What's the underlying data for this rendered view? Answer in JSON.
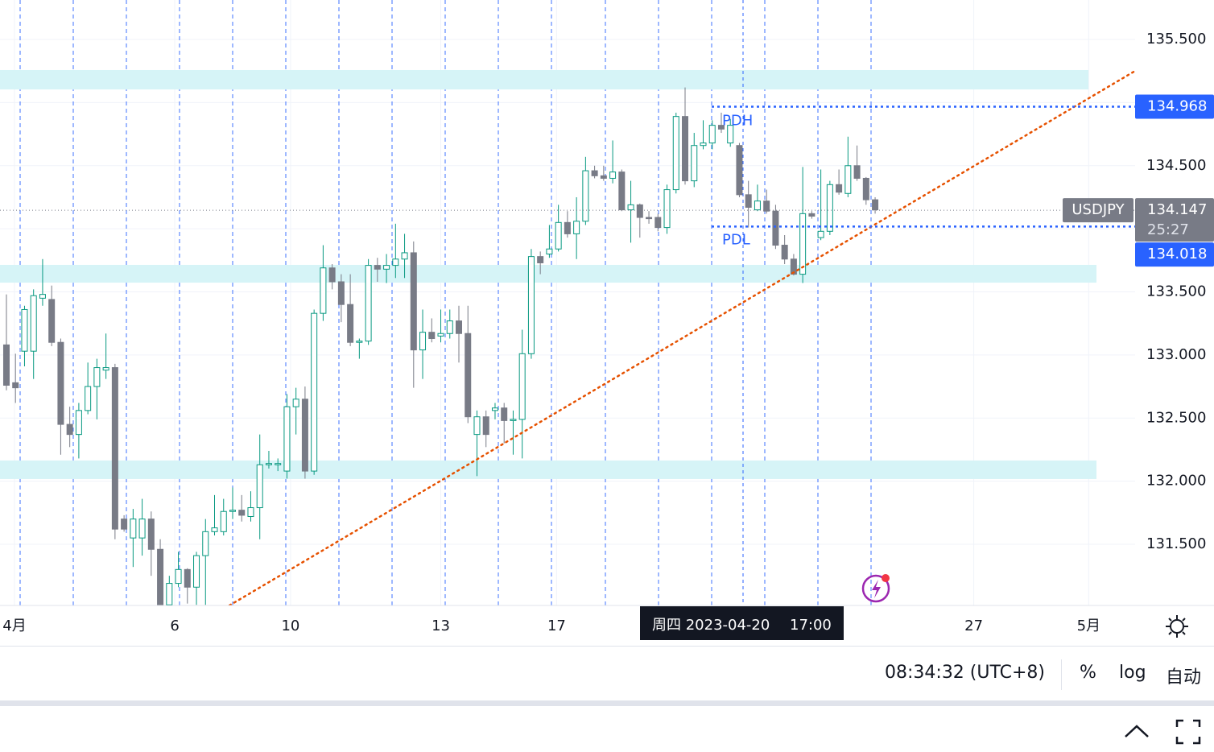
{
  "chart_data": {
    "type": "candlestick",
    "symbol": "USDJPY",
    "up_color": "#089981",
    "down_color": "#787b86",
    "xlim": [
      -0.71,
      124.73
    ],
    "ylim": [
      131.015,
      135.813
    ],
    "yticks": [
      {
        "value": 131.5,
        "label": "131.500"
      },
      {
        "value": 132,
        "label": "132.000"
      },
      {
        "value": 132.5,
        "label": "132.500"
      },
      {
        "value": 133,
        "label": "133.000"
      },
      {
        "value": 133.5,
        "label": "133.500"
      },
      {
        "value": 134,
        "label": "134.000"
      },
      {
        "value": 134.5,
        "label": "134.500"
      },
      {
        "value": 135,
        "label": "135.000"
      },
      {
        "value": 135.5,
        "label": "135.500"
      }
    ],
    "xticks": [
      {
        "value": 0.89,
        "label": "4月"
      },
      {
        "value": 18.6,
        "label": "6"
      },
      {
        "value": 31.4,
        "label": "10"
      },
      {
        "value": 48.0,
        "label": "13"
      },
      {
        "value": 60.8,
        "label": "17"
      },
      {
        "value": 106.9,
        "label": "27"
      },
      {
        "value": 119.6,
        "label": "5月"
      }
    ],
    "grid": true,
    "open": [
      133.08,
      132.78,
      133.03,
      133.03,
      133.45,
      133.44,
      133.1,
      132.45,
      132.37,
      132.56,
      132.75,
      132.88,
      132.9,
      131.7,
      131.55,
      131.55,
      131.7,
      131.46,
      131.02,
      131.19,
      131.3,
      131.16,
      131.41,
      131.6,
      131.6,
      131.76,
      131.77,
      131.72,
      131.79,
      132.13,
      132.13,
      132.08,
      132.59,
      132.65,
      132.08,
      133.33,
      133.69,
      133.58,
      133.4,
      133.1,
      133.11,
      133.71,
      133.68,
      133.71,
      133.76,
      133.81,
      133.04,
      133.18,
      133.15,
      133.17,
      133.27,
      133.17,
      132.37,
      132.51,
      132.56,
      132.58,
      132.48,
      132.49,
      133.01,
      133.78,
      133.8,
      133.84,
      134.05,
      133.96,
      134.06,
      134.46,
      134.42,
      134.4,
      134.45,
      134.15,
      134.19,
      134.09,
      134.09,
      134.01,
      134.31,
      134.89,
      134.38,
      134.66,
      134.68,
      134.82,
      134.68,
      134.66,
      134.27,
      134.15,
      134.22,
      134.14,
      133.87,
      133.76,
      133.64,
      134.12,
      133.93,
      133.98,
      134.35,
      134.28,
      134.5,
      134.4,
      134.23
    ],
    "high": [
      133.48,
      133.01,
      133.39,
      133.52,
      133.76,
      133.55,
      133.13,
      132.59,
      132.62,
      132.94,
      132.97,
      133.17,
      132.93,
      131.73,
      131.78,
      131.86,
      131.76,
      131.54,
      131.25,
      131.44,
      131.31,
      131.44,
      131.7,
      131.89,
      131.86,
      131.95,
      131.89,
      131.92,
      132.37,
      132.24,
      132.18,
      132.69,
      132.74,
      132.75,
      133.36,
      133.87,
      133.72,
      133.64,
      133.64,
      133.13,
      133.76,
      133.77,
      133.8,
      134.04,
      133.96,
      133.9,
      133.36,
      133.29,
      133.36,
      133.36,
      133.39,
      133.39,
      132.56,
      132.56,
      132.62,
      132.62,
      132.56,
      133.2,
      133.84,
      133.82,
      134.03,
      134.19,
      134.14,
      134.25,
      134.57,
      134.5,
      134.5,
      134.7,
      134.47,
      134.38,
      134.2,
      134.14,
      134.12,
      134.35,
      134.92,
      135.12,
      134.76,
      134.86,
      134.86,
      134.92,
      134.87,
      134.68,
      134.38,
      134.35,
      134.31,
      134.19,
      133.95,
      133.8,
      134.49,
      134.14,
      134.47,
      134.38,
      134.47,
      134.73,
      134.66,
      134.41,
      134.25
    ],
    "low": [
      132.72,
      132.62,
      132.91,
      132.81,
      133.39,
      133.07,
      132.21,
      132.27,
      132.18,
      132.53,
      132.49,
      132.81,
      131.54,
      131.6,
      131.32,
      131.41,
      131.25,
      130.96,
      130.96,
      131.16,
      131.03,
      131.02,
      131.02,
      131.57,
      131.57,
      131.7,
      131.68,
      131.68,
      131.54,
      132.1,
      132.08,
      132.02,
      132.37,
      132.02,
      132.05,
      133.27,
      133.52,
      133.26,
      133.07,
      132.97,
      133.08,
      133.58,
      133.57,
      133.61,
      133.61,
      132.74,
      132.81,
      133.1,
      133.1,
      133.13,
      132.94,
      132.46,
      132.04,
      132.27,
      132.49,
      132.3,
      132.21,
      132.18,
      132.97,
      133.64,
      133.77,
      133.82,
      133.93,
      133.76,
      134.03,
      134.4,
      134.38,
      134.36,
      134.14,
      133.89,
      133.93,
      134.04,
      133.98,
      133.96,
      134.28,
      134.35,
      134.33,
      134.63,
      134.63,
      134.76,
      134.65,
      134.25,
      134.01,
      134.14,
      134.12,
      133.84,
      133.72,
      133.63,
      133.57,
      134.08,
      133.91,
      133.95,
      134.27,
      134.25,
      134.38,
      134.19,
      134.12
    ],
    "close": [
      132.76,
      132.74,
      133.36,
      133.47,
      133.48,
      133.1,
      132.45,
      132.37,
      132.56,
      132.75,
      132.9,
      132.9,
      131.62,
      131.62,
      131.7,
      131.7,
      131.46,
      131.02,
      131.19,
      131.3,
      131.16,
      131.41,
      131.6,
      131.63,
      131.76,
      131.77,
      131.73,
      131.79,
      132.13,
      132.14,
      132.14,
      132.59,
      132.65,
      132.08,
      133.33,
      133.69,
      133.58,
      133.4,
      133.1,
      133.11,
      133.71,
      133.68,
      133.71,
      133.76,
      133.81,
      133.04,
      133.18,
      133.13,
      133.17,
      133.27,
      133.17,
      132.51,
      132.51,
      132.37,
      132.58,
      132.48,
      132.49,
      133.01,
      133.78,
      133.73,
      133.84,
      134.05,
      133.96,
      134.06,
      134.46,
      134.42,
      134.4,
      134.45,
      134.15,
      134.19,
      134.09,
      134.08,
      134.01,
      134.31,
      134.89,
      134.38,
      134.66,
      134.68,
      134.82,
      134.79,
      134.82,
      134.27,
      134.17,
      134.22,
      134.14,
      133.87,
      133.76,
      133.64,
      134.12,
      134.1,
      133.98,
      134.35,
      134.29,
      134.5,
      134.4,
      134.23,
      134.15
    ],
    "zones": [
      {
        "from": 135.104,
        "to": 135.258,
        "color": "#d6f4f7"
      },
      {
        "from": 133.573,
        "to": 133.714,
        "color": "#d6f4f7"
      },
      {
        "from": 132.017,
        "to": 132.164,
        "color": "#d6f4f7"
      }
    ],
    "levels": [
      {
        "name": "PDH",
        "value": 134.968,
        "color": "#2962ff"
      },
      {
        "name": "PDL",
        "value": 134.018,
        "color": "#2962ff"
      }
    ],
    "last": {
      "value": 134.147,
      "countdown": "25:27",
      "color": "#787b86"
    },
    "trendline": {
      "x": [
        24.64,
        124.73
      ],
      "y": [
        131.015,
        135.251
      ],
      "color": "#e65100"
    },
    "crosshair": {
      "day": "周四 2023-04-20",
      "time": "17:00"
    }
  },
  "status_bar": {
    "clock": "08:34:32 (UTC+8)",
    "buttons": [
      "%",
      "log",
      "自动"
    ]
  }
}
